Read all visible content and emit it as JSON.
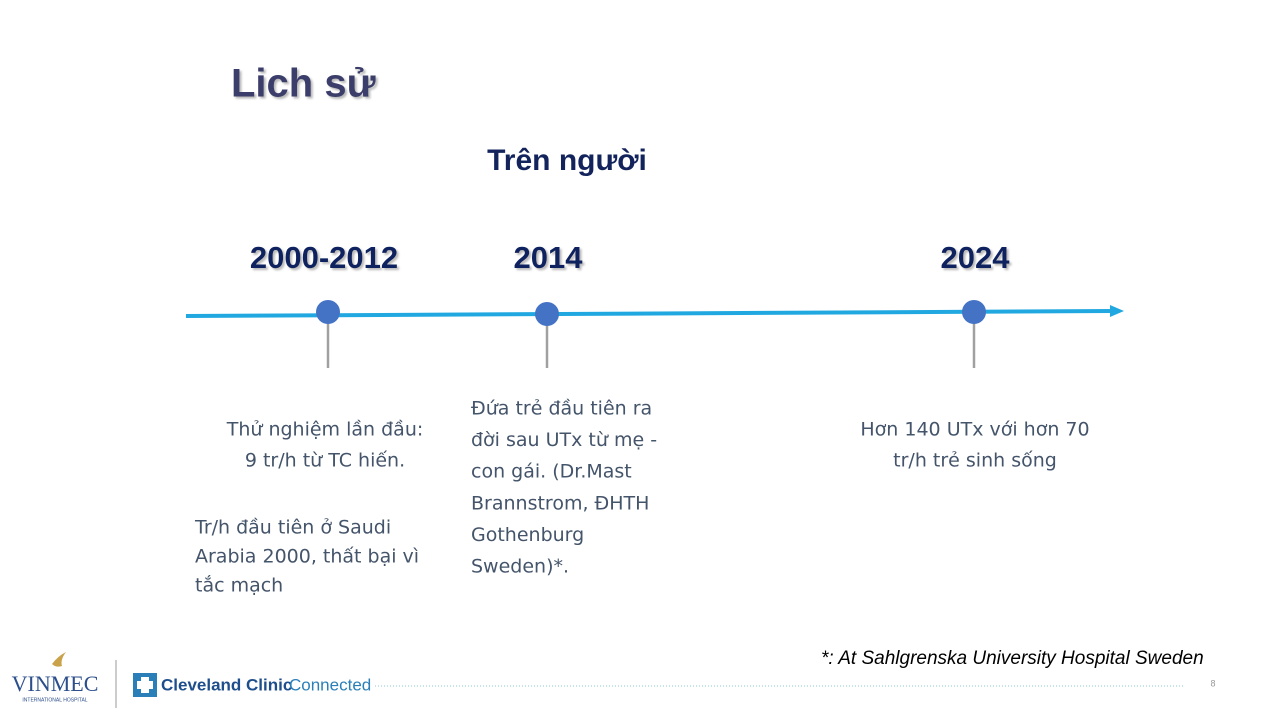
{
  "header": {
    "title": "Lich sử",
    "subtitle": "Trên người"
  },
  "timeline": [
    {
      "year": "2000-2012",
      "paragraphs": [
        [
          "Thử nghiệm lần đầu:",
          "9 tr/h từ TC hiến."
        ],
        [
          "Tr/h đầu tiên ở Saudi",
          "Arabia 2000, thất bại vì",
          "tắc mạch"
        ]
      ]
    },
    {
      "year": "2014",
      "paragraphs": [
        [
          "Đứa trẻ đầu tiên ra",
          "đời sau UTx từ mẹ -",
          "con gái. (Dr.Mast",
          "Brannstrom, ĐHTH",
          "Gothenburg",
          "Sweden)*."
        ]
      ]
    },
    {
      "year": "2024",
      "paragraphs": [
        [
          "Hơn  140 UTx với hơn 70",
          "tr/h trẻ sinh sống"
        ]
      ]
    }
  ],
  "footnote": "*: At Sahlgrenska University Hospital Sweden",
  "footer": {
    "brand": "VINMEC",
    "brand_sub": "INTERNATIONAL HOSPITAL",
    "partner": "Cleveland Clinic",
    "partner_sub": "Connected",
    "page": "8"
  }
}
